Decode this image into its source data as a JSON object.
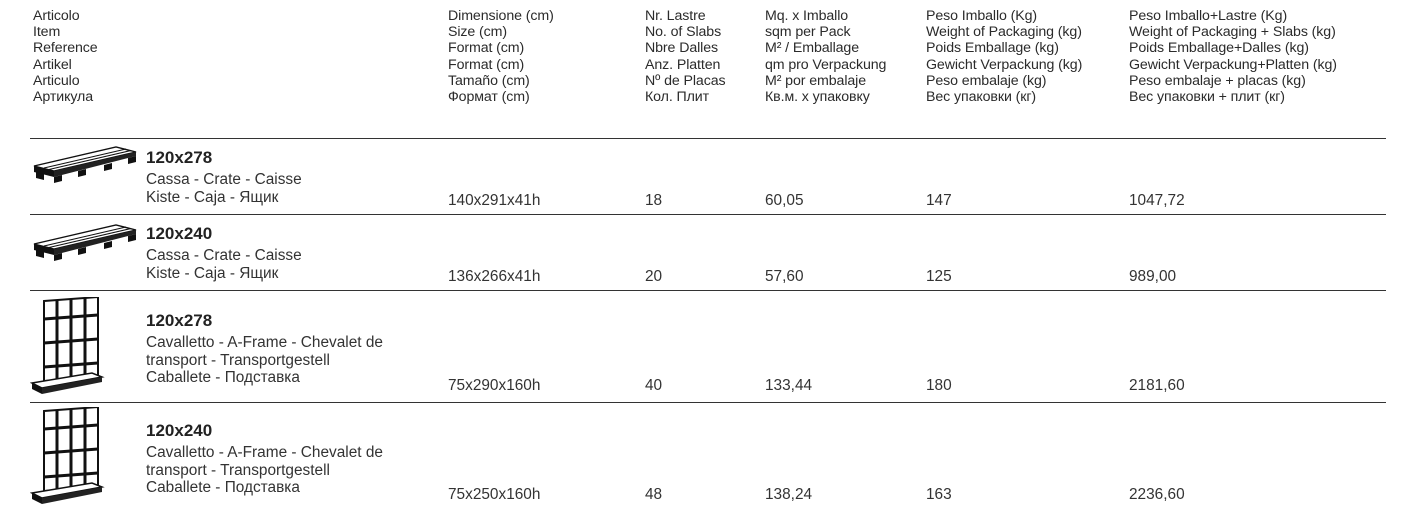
{
  "header": {
    "article": [
      "Articolo",
      "Item",
      "Reference",
      "Artikel",
      "Articulo",
      "Артикула"
    ],
    "size": [
      "Dimensione (cm)",
      "Size (cm)",
      "Format (cm)",
      "Format  (cm)",
      "Tamaño (cm)",
      "Формат (cm)"
    ],
    "slabs": [
      "Nr. Lastre",
      "No. of Slabs",
      "Nbre Dalles",
      "Anz. Platten",
      "Nº de Placas",
      "Кол. Плит"
    ],
    "sqm": [
      "Mq. x Imballo",
      "sqm per Pack",
      "M² / Emballage",
      "qm pro Verpackung",
      "M² por embalaje",
      "Кв.м. х упаковку"
    ],
    "packaging_weight": [
      "Peso Imballo (Kg)",
      "Weight of Packaging (kg)",
      "Poids Emballage (kg)",
      "Gewicht Verpackung (kg)",
      "Peso embalaje (kg)",
      "Вес упаковки (кг)"
    ],
    "total_weight": [
      "Peso Imballo+Lastre (Kg)",
      "Weight of Packaging + Slabs (kg)",
      "Poids Emballage+Dalles (kg)",
      "Gewicht Verpackung+Platten (kg)",
      "Peso embalaje + placas (kg)",
      "Вес упаковки + плит (кг)"
    ]
  },
  "rows": [
    {
      "icon": "crate-icon",
      "format": "120x278",
      "desc": [
        "Cassa - Crate - Caisse",
        "Kiste - Caja - Ящик"
      ],
      "size": "140x291x41h",
      "slabs": "18",
      "sqm": "60,05",
      "packaging_weight": "147",
      "total_weight": "1047,72"
    },
    {
      "icon": "crate-icon",
      "format": "120x240",
      "desc": [
        "Cassa - Crate - Caisse",
        "Kiste - Caja - Ящик"
      ],
      "size": "136x266x41h",
      "slabs": "20",
      "sqm": "57,60",
      "packaging_weight": "125",
      "total_weight": "989,00"
    },
    {
      "icon": "a-frame-icon",
      "format": "120x278",
      "desc": [
        "Cavalletto - A-Frame - Chevalet de",
        "transport - Transportgestell",
        "Caballete - Подставка"
      ],
      "size": "75x290x160h",
      "slabs": "40",
      "sqm": "133,44",
      "packaging_weight": "180",
      "total_weight": "2181,60"
    },
    {
      "icon": "a-frame-icon",
      "format": "120x240",
      "desc": [
        "Cavalletto - A-Frame - Chevalet de",
        "transport - Transportgestell",
        "Caballete - Подставка"
      ],
      "size": "75x250x160h",
      "slabs": "48",
      "sqm": "138,24",
      "packaging_weight": "163",
      "total_weight": "2236,60"
    }
  ]
}
